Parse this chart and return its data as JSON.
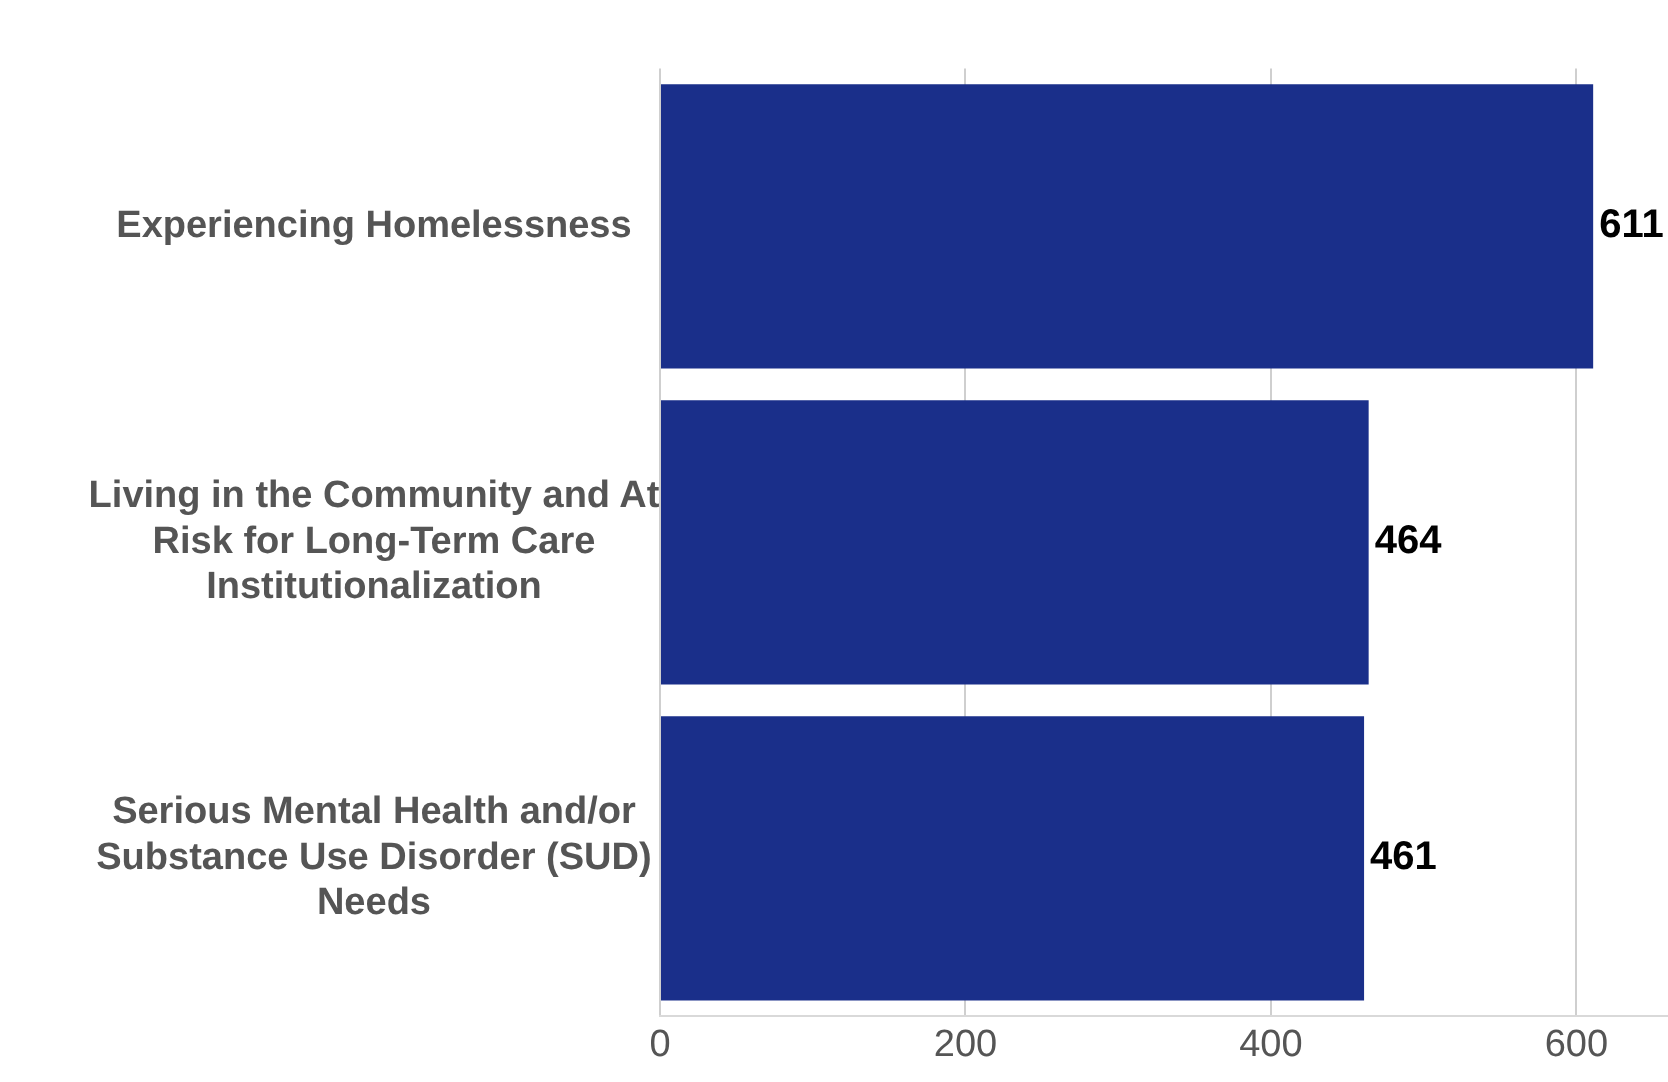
{
  "chart_data": {
    "type": "bar",
    "orientation": "horizontal",
    "categories": [
      "Experiencing Homelessness",
      "Living in the Community and At Risk for Long-Term Care Institutionalization",
      "Serious Mental Health and/or Substance Use Disorder (SUD) Needs"
    ],
    "values": [
      611,
      464,
      461
    ],
    "color": "#1a2f8a",
    "xlim": [
      0,
      660
    ],
    "xticks": [
      0,
      200,
      400,
      600
    ],
    "grid": "x",
    "data_labels": true
  }
}
